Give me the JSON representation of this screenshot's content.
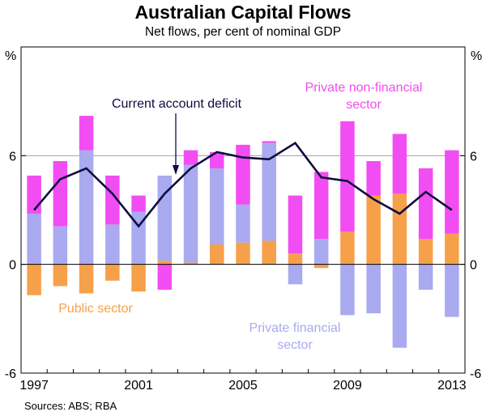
{
  "title": "Australian Capital Flows",
  "subtitle": "Net flows, per cent of nominal GDP",
  "source": "Sources: ABS; RBA",
  "chart_data": {
    "type": "bar",
    "stacked": true,
    "title": "Australian Capital Flows",
    "subtitle": "Net flows, per cent of nominal GDP",
    "unit_left": "%",
    "unit_right": "%",
    "ylim": [
      -6,
      12
    ],
    "yticks": [
      -6,
      0,
      6
    ],
    "xticks": [
      "1997",
      "2001",
      "2005",
      "2009",
      "2013"
    ],
    "categories": [
      "1997",
      "1998",
      "1999",
      "2000",
      "2001",
      "2002",
      "2003",
      "2004",
      "2005",
      "2006",
      "2007",
      "2008",
      "2009",
      "2010",
      "2011",
      "2012",
      "2013"
    ],
    "colors": {
      "public": "#f7a04a",
      "private_financial": "#a9aaf0",
      "private_non_financial": "#f24df2",
      "current_account": "#0d0d40"
    },
    "series": [
      {
        "name": "Public sector",
        "key": "public",
        "values": [
          -1.7,
          -1.2,
          -1.6,
          -0.9,
          -1.5,
          0.2,
          0.1,
          1.1,
          1.2,
          1.3,
          0.6,
          -0.2,
          1.8,
          3.8,
          3.9,
          1.4,
          1.7
        ]
      },
      {
        "name": "Private financial sector",
        "key": "private_financial",
        "values": [
          2.8,
          2.1,
          6.3,
          2.2,
          2.9,
          4.7,
          5.4,
          4.2,
          2.1,
          5.4,
          -1.1,
          1.4,
          -2.8,
          -2.7,
          -4.6,
          -1.4,
          -2.9
        ]
      },
      {
        "name": "Private non-financial sector",
        "key": "private_non_financial",
        "values": [
          2.1,
          3.6,
          1.9,
          2.7,
          0.9,
          -1.4,
          0.8,
          0.9,
          3.3,
          0.1,
          3.2,
          3.7,
          6.1,
          1.9,
          3.3,
          3.9,
          4.6
        ]
      },
      {
        "name": "Current account deficit",
        "key": "current_account",
        "type": "line",
        "values": [
          3.0,
          4.7,
          5.3,
          3.9,
          2.1,
          3.9,
          5.3,
          6.2,
          5.9,
          5.8,
          6.7,
          4.8,
          4.6,
          3.6,
          2.8,
          4.0,
          3.0
        ]
      }
    ],
    "annotations": [
      {
        "text": "Current account deficit",
        "series": "current_account"
      },
      {
        "text": "Private non-financial",
        "text2": "sector",
        "series": "private_non_financial"
      },
      {
        "text": "Public sector",
        "series": "public"
      },
      {
        "text": "Private financial",
        "text2": "sector",
        "series": "private_financial"
      }
    ]
  }
}
